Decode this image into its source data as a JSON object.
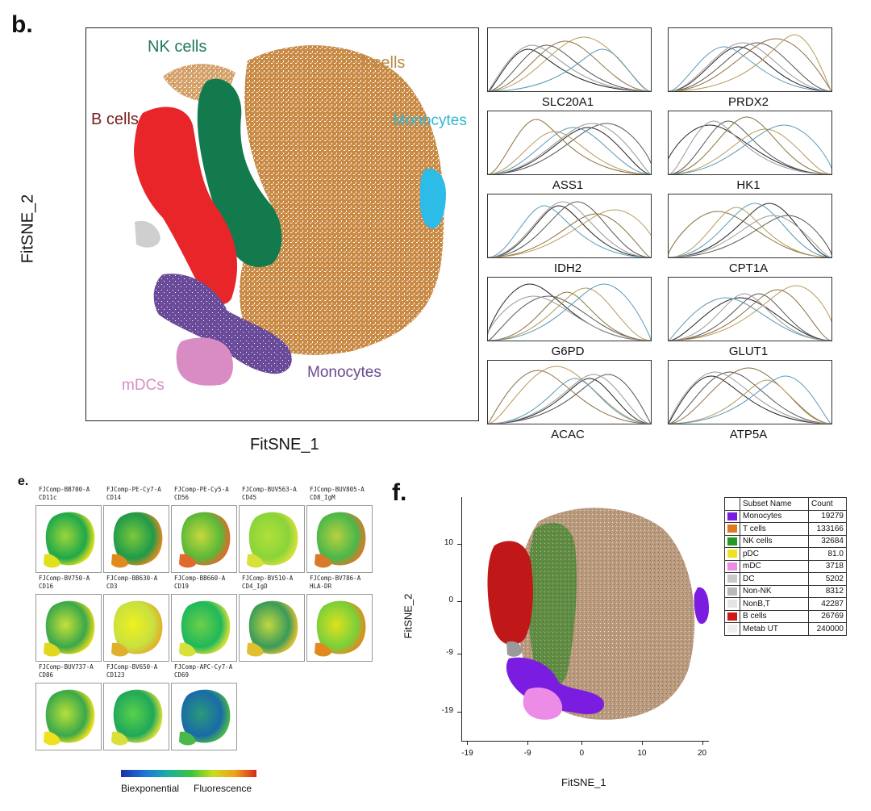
{
  "panel_b": {
    "letter": "b.",
    "xlabel": "FitSNE_1",
    "ylabel": "FitSNE_2",
    "cluster_labels": [
      {
        "text": "NK cells",
        "color": "#1f7a57"
      },
      {
        "text": "T cells",
        "color": "#b98a45"
      },
      {
        "text": "B cells",
        "color": "#7a1e1e"
      },
      {
        "text": "Monocytes",
        "color": "#35b6d3"
      },
      {
        "text": "Monocytes",
        "color": "#6b4a8f"
      },
      {
        "text": "mDCs",
        "color": "#d88cc6"
      }
    ],
    "cluster_colors": {
      "t": "#c98a45",
      "nk": "#127a4c",
      "b": "#e8262a",
      "mono_purple": "#6a4b9a",
      "mdc": "#d98cc4",
      "mono_cyan": "#2dbbe8"
    }
  },
  "histograms": {
    "labels": [
      "SLC20A1",
      "PRDX2",
      "ASS1",
      "HK1",
      "IDH2",
      "CPT1A",
      "G6PD",
      "GLUT1",
      "ACAC",
      "ATP5A"
    ]
  },
  "panel_e": {
    "letter": "e.",
    "tiles": [
      {
        "channel": "FJComp-BB700-A",
        "marker": "CD11c",
        "scheme": 0
      },
      {
        "channel": "FJComp-PE-Cy7-A",
        "marker": "CD14",
        "scheme": 1
      },
      {
        "channel": "FJComp-PE-Cy5-A",
        "marker": "CD56",
        "scheme": 2
      },
      {
        "channel": "FJComp-BUV563-A",
        "marker": "CD45",
        "scheme": 3
      },
      {
        "channel": "FJComp-BUV805-A",
        "marker": "CD8_IgM",
        "scheme": 4
      },
      {
        "channel": "FJComp-BV750-A",
        "marker": "CD16",
        "scheme": 5
      },
      {
        "channel": "FJComp-BB630-A",
        "marker": "CD3",
        "scheme": 6
      },
      {
        "channel": "FJComp-BB660-A",
        "marker": "CD19",
        "scheme": 7
      },
      {
        "channel": "FJComp-BV510-A",
        "marker": "CD4_IgD",
        "scheme": 8
      },
      {
        "channel": "FJComp-BV786-A",
        "marker": "HLA-DR",
        "scheme": 9
      },
      {
        "channel": "FJComp-BUV737-A",
        "marker": "CD86",
        "scheme": 10
      },
      {
        "channel": "FJComp-BV650-A",
        "marker": "CD123",
        "scheme": 11
      },
      {
        "channel": "FJComp-APC-Cy7-A",
        "marker": "CD69",
        "scheme": 12
      }
    ],
    "colorbar_left": "Biexponential",
    "colorbar_right": "Fluorescence"
  },
  "panel_f": {
    "letter": "f.",
    "xlabel": "FitSNE_1",
    "ylabel": "FitSNE_2",
    "table_headers": [
      "Subset Name",
      "Count"
    ],
    "subsets": [
      {
        "name": "Monocytes",
        "count": "19279",
        "color": "#7a1de0"
      },
      {
        "name": "T cells",
        "count": "133166",
        "color": "#e07a1d"
      },
      {
        "name": "NK cells",
        "count": "32684",
        "color": "#239a23"
      },
      {
        "name": "pDC",
        "count": "81.0",
        "color": "#f0e21d"
      },
      {
        "name": "mDC",
        "count": "3718",
        "color": "#ec8ce6"
      },
      {
        "name": "DC",
        "count": "5202",
        "color": "#c9c9c9"
      },
      {
        "name": "Non-NK",
        "count": "8312",
        "color": "#b8b8b8"
      },
      {
        "name": "NonB,T",
        "count": "42287",
        "color": "#e4e4e4"
      },
      {
        "name": "B cells",
        "count": "26769",
        "color": "#d01818"
      },
      {
        "name": "Metab UT",
        "count": "240000",
        "color": "#eeeeee"
      }
    ]
  },
  "chart_data": {
    "type": "scatter",
    "xlabel": "FitSNE_1",
    "ylabel": "FitSNE_2",
    "xticks": [
      "-19",
      "-9",
      "0",
      "10",
      "20"
    ],
    "yticks": [
      "10",
      "0",
      "-9",
      "-19"
    ],
    "xlim": [
      -20,
      21
    ],
    "ylim": [
      -24,
      18
    ]
  }
}
